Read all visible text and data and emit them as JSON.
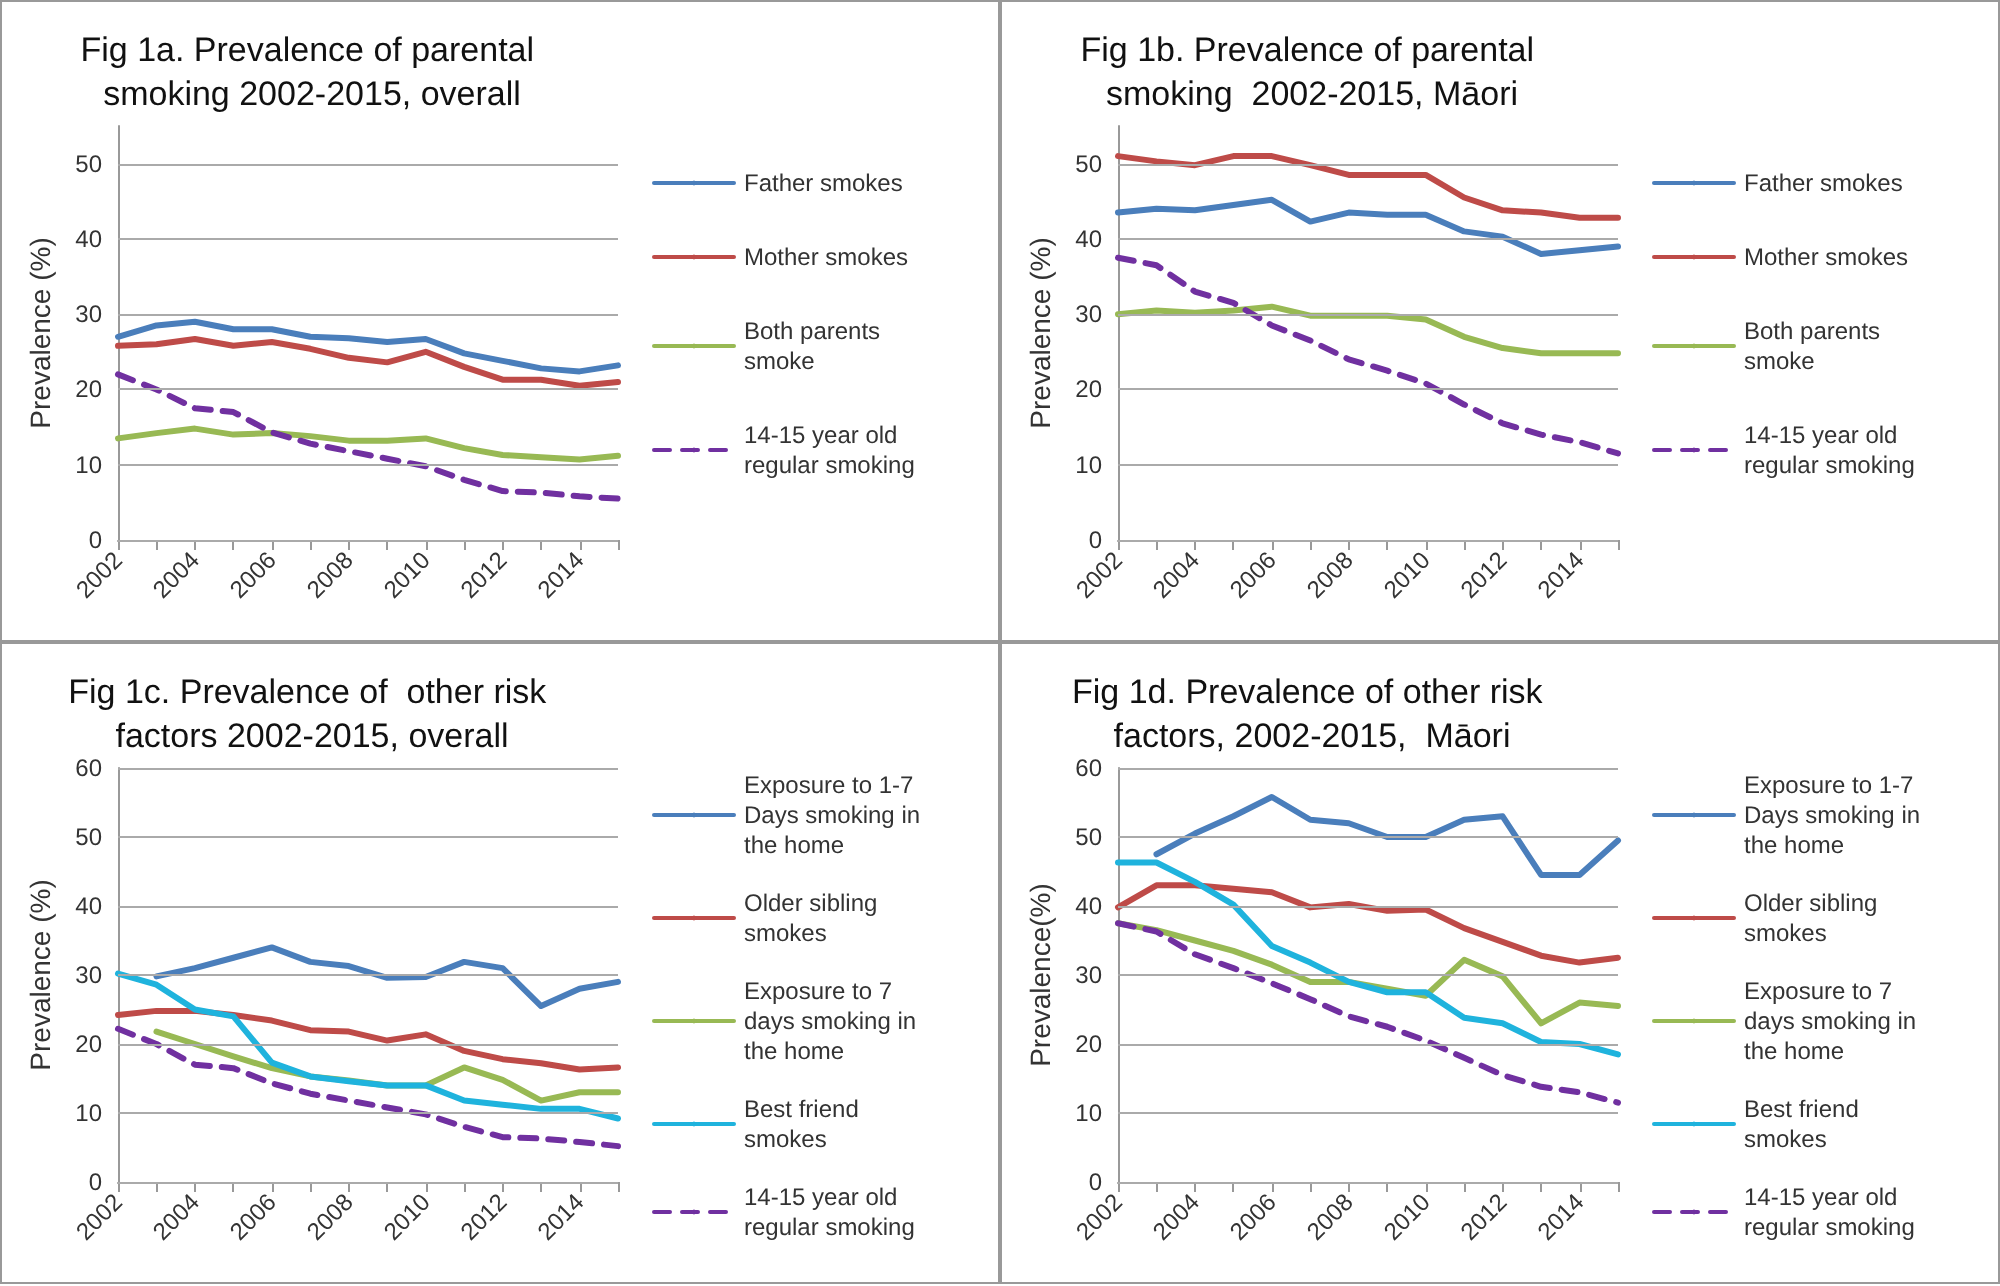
{
  "chart_data": [
    {
      "type": "line",
      "title": "Fig 1a. Prevalence of parental smoking 2002-2015, overall",
      "ylabel": "Prevalence (%)",
      "categories": [
        "2002",
        null,
        "2004",
        null,
        "2006",
        null,
        "2008",
        null,
        "2010",
        null,
        "2012",
        null,
        "2014",
        null
      ],
      "ylim": [
        0,
        55
      ],
      "yticks": [
        0,
        10,
        20,
        30,
        40,
        50
      ],
      "grid": "y",
      "legend": "right",
      "marker": "none",
      "series": [
        {
          "name": "Father smokes",
          "color": "#4a7ebb",
          "line_style": "solid",
          "values": [
            27,
            28.5,
            29,
            28,
            28,
            27,
            26.8,
            26.3,
            26.7,
            24.8,
            23.8,
            22.8,
            22.4,
            23.2
          ]
        },
        {
          "name": "Mother smokes",
          "color": "#be4b48",
          "line_style": "solid",
          "values": [
            25.8,
            26,
            26.7,
            25.8,
            26.3,
            25.4,
            24.2,
            23.6,
            25,
            23,
            21.3,
            21.3,
            20.5,
            21
          ]
        },
        {
          "name": "Both parents smoke",
          "color": "#98b954",
          "line_style": "solid",
          "values": [
            13.5,
            14.2,
            14.8,
            14,
            14.2,
            13.8,
            13.2,
            13.2,
            13.5,
            12.2,
            11.3,
            11,
            10.7,
            11.2
          ]
        },
        {
          "name": "14-15 year old regular smoking",
          "color": "#7030a0",
          "line_style": "dashed",
          "values": [
            22,
            20,
            17.5,
            17,
            14.3,
            12.8,
            11.8,
            10.8,
            9.8,
            8,
            6.5,
            6.3,
            5.8,
            5.5
          ]
        }
      ]
    },
    {
      "type": "line",
      "title": "Fig 1b. Prevalence of parental smoking  2002-2015, Māori",
      "ylabel": "Prevalence (%)",
      "categories": [
        "2002",
        null,
        "2004",
        null,
        "2006",
        null,
        "2008",
        null,
        "2010",
        null,
        "2012",
        null,
        "2014",
        null
      ],
      "ylim": [
        0,
        55
      ],
      "yticks": [
        0,
        10,
        20,
        30,
        40,
        50
      ],
      "grid": "y",
      "legend": "right",
      "marker": "none",
      "series": [
        {
          "name": "Father smokes",
          "color": "#4a7ebb",
          "line_style": "solid",
          "values": [
            43.5,
            44,
            43.8,
            44.5,
            45.2,
            42.3,
            43.5,
            43.2,
            43.2,
            41,
            40.3,
            38,
            38.5,
            39
          ]
        },
        {
          "name": "Mother smokes",
          "color": "#be4b48",
          "line_style": "solid",
          "values": [
            51,
            50.3,
            49.8,
            51,
            51,
            49.8,
            48.5,
            48.5,
            48.5,
            45.5,
            43.8,
            43.5,
            42.8,
            42.8
          ]
        },
        {
          "name": "Both parents smoke",
          "color": "#98b954",
          "line_style": "solid",
          "values": [
            30,
            30.5,
            30.2,
            30.5,
            31,
            29.8,
            29.8,
            29.8,
            29.3,
            27,
            25.5,
            24.8,
            24.8,
            24.8
          ]
        },
        {
          "name": "14-15 year old regular smoking",
          "color": "#7030a0",
          "line_style": "dashed",
          "values": [
            37.5,
            36.5,
            33,
            31.5,
            28.5,
            26.5,
            24,
            22.5,
            20.8,
            18,
            15.5,
            14,
            13,
            11.5
          ]
        }
      ]
    },
    {
      "type": "line",
      "title": "Fig 1c. Prevalence of  other risk factors 2002-2015, overall",
      "ylabel": "Prevalence (%)",
      "categories": [
        "2002",
        null,
        "2004",
        null,
        "2006",
        null,
        "2008",
        null,
        "2010",
        null,
        "2012",
        null,
        "2014",
        null
      ],
      "ylim": [
        0,
        60
      ],
      "yticks": [
        0,
        10,
        20,
        30,
        40,
        50,
        60
      ],
      "grid": "y",
      "legend": "right",
      "marker": "none",
      "series": [
        {
          "name": "Exposure to 1-7 Days smoking in the home",
          "color": "#4a7ebb",
          "line_style": "solid",
          "values": [
            null,
            29.8,
            31,
            32.5,
            34,
            31.9,
            31.3,
            29.6,
            29.7,
            31.9,
            31,
            25.5,
            28,
            29
          ]
        },
        {
          "name": "Older sibling smokes",
          "color": "#be4b48",
          "line_style": "solid",
          "values": [
            24.2,
            24.8,
            24.8,
            24.2,
            23.4,
            22,
            21.8,
            20.5,
            21.4,
            19,
            17.8,
            17.2,
            16.3,
            16.6
          ]
        },
        {
          "name": "Exposure to 7 days smoking in the home",
          "color": "#98b954",
          "line_style": "solid",
          "values": [
            null,
            21.8,
            20,
            18.2,
            16.5,
            15.3,
            14.7,
            14,
            14,
            16.6,
            14.8,
            11.8,
            13,
            13
          ]
        },
        {
          "name": "Best friend smokes",
          "color": "#1fb3dd",
          "line_style": "solid",
          "values": [
            30.2,
            28.6,
            25,
            24,
            17.3,
            15.3,
            14.6,
            14,
            14,
            11.8,
            11.2,
            10.6,
            10.6,
            9.2
          ]
        },
        {
          "name": "14-15 year old regular smoking",
          "color": "#7030a0",
          "line_style": "dashed",
          "values": [
            22.2,
            20,
            17,
            16.5,
            14.3,
            12.8,
            11.8,
            10.8,
            9.8,
            8,
            6.5,
            6.3,
            5.8,
            5.2
          ]
        }
      ]
    },
    {
      "type": "line",
      "title": "Fig 1d. Prevalence of other risk factors, 2002-2015,  Māori",
      "ylabel": "Prevalence(%)",
      "categories": [
        "2002",
        null,
        "2004",
        null,
        "2006",
        null,
        "2008",
        null,
        "2010",
        null,
        "2012",
        null,
        "2014",
        null
      ],
      "ylim": [
        0,
        60
      ],
      "yticks": [
        0,
        10,
        20,
        30,
        40,
        50,
        60
      ],
      "grid": "y",
      "legend": "right",
      "marker": "none",
      "series": [
        {
          "name": "Exposure to 1-7 Days smoking in the home",
          "color": "#4a7ebb",
          "line_style": "solid",
          "values": [
            null,
            47.5,
            50.5,
            53,
            55.8,
            52.5,
            52,
            50,
            50,
            52.5,
            53,
            44.5,
            44.5,
            49.5
          ]
        },
        {
          "name": "Older sibling smokes",
          "color": "#be4b48",
          "line_style": "solid",
          "values": [
            39.8,
            43,
            43,
            42.5,
            42,
            39.8,
            40.3,
            39.3,
            39.5,
            36.8,
            34.8,
            32.8,
            31.8,
            32.5
          ]
        },
        {
          "name": "Exposure to 7 days smoking in the home",
          "color": "#98b954",
          "line_style": "solid",
          "values": [
            37.5,
            36.5,
            35,
            33.5,
            31.5,
            29,
            29,
            28,
            27,
            32.2,
            29.8,
            23,
            26,
            25.5
          ]
        },
        {
          "name": "Best friend smokes",
          "color": "#1fb3dd",
          "line_style": "solid",
          "values": [
            46.3,
            46.3,
            43.5,
            40.2,
            34.2,
            31.8,
            29,
            27.5,
            27.5,
            23.8,
            23,
            20.3,
            20,
            18.5
          ]
        },
        {
          "name": "14-15 year old regular smoking",
          "color": "#7030a0",
          "line_style": "dashed",
          "values": [
            37.5,
            36.3,
            33,
            31,
            28.8,
            26.5,
            24,
            22.5,
            20.5,
            18,
            15.5,
            13.8,
            13,
            11.5
          ]
        }
      ]
    }
  ]
}
